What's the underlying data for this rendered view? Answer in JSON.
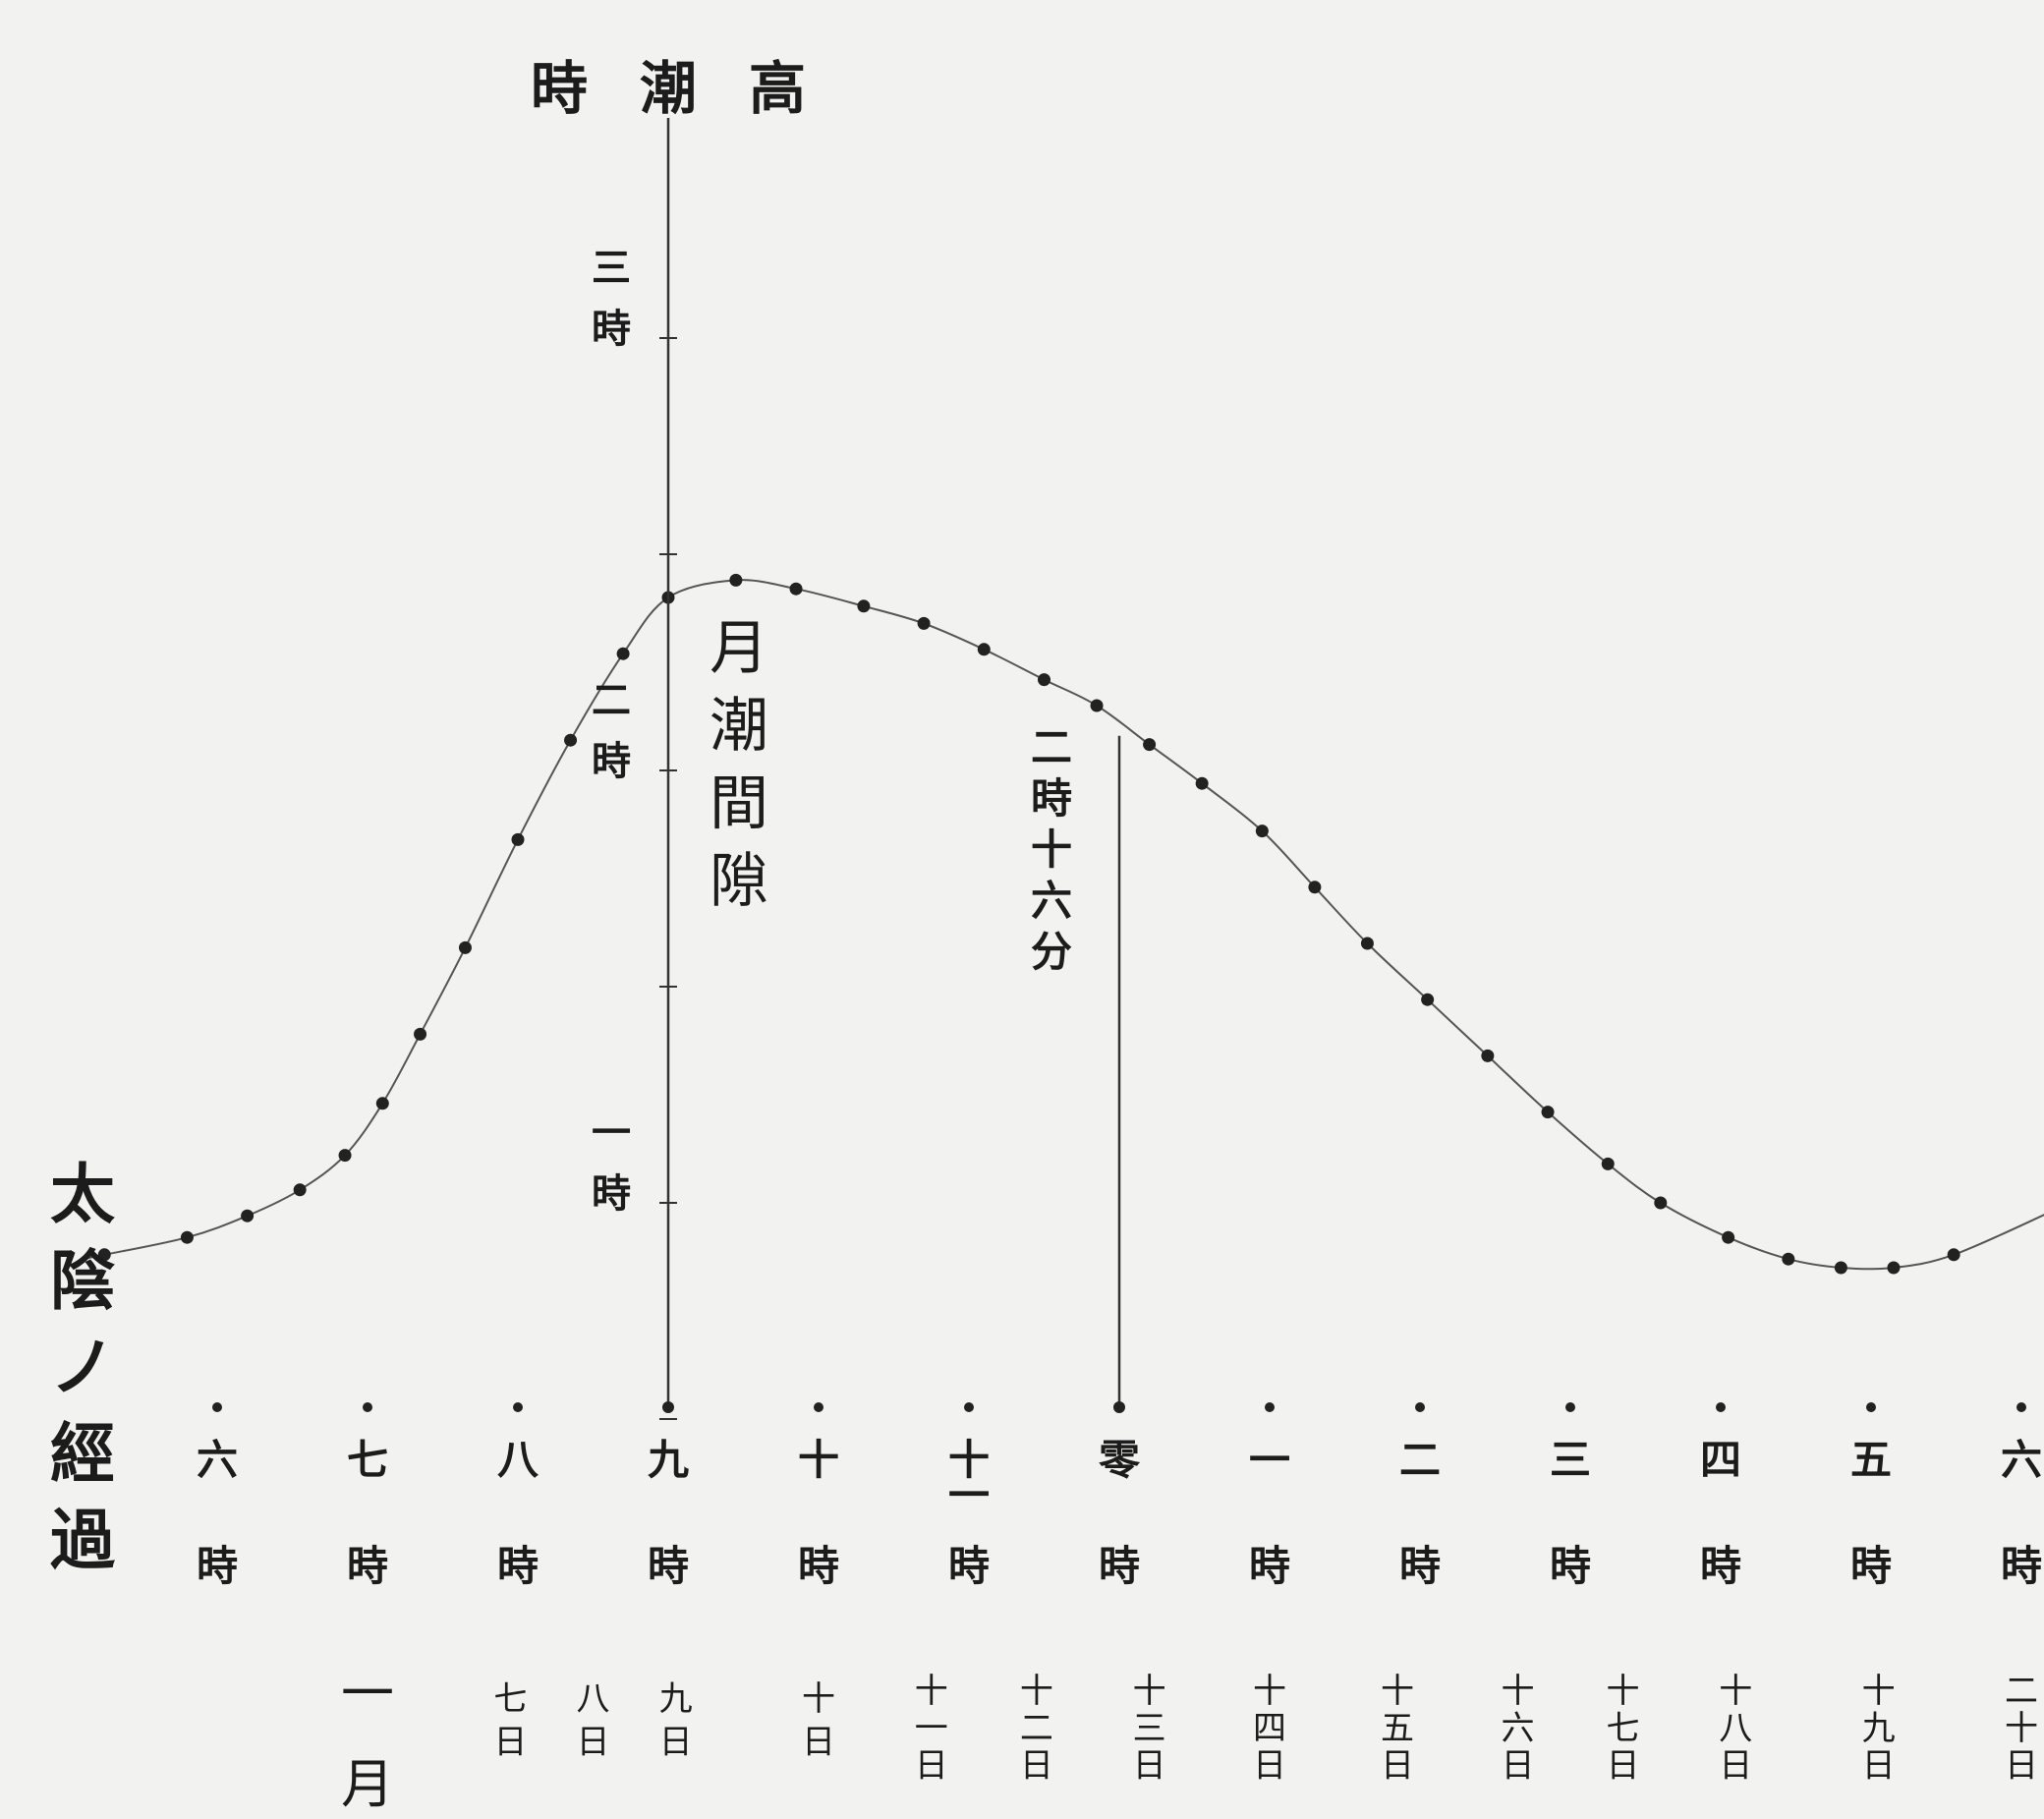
{
  "chart_data": {
    "type": "line",
    "title": "高潮時",
    "xlabel": "太陰ノ經過",
    "ylabel": "",
    "x_hour_labels": [
      {
        "hour": 6,
        "num": "六",
        "unit": "時"
      },
      {
        "hour": 7,
        "num": "七",
        "unit": "時"
      },
      {
        "hour": 8,
        "num": "八",
        "unit": "時"
      },
      {
        "hour": 9,
        "num": "九",
        "unit": "時"
      },
      {
        "hour": 10,
        "num": "十",
        "unit": "時"
      },
      {
        "hour": 11,
        "num": "十一",
        "unit": "時"
      },
      {
        "hour": 12,
        "num": "零",
        "unit": "時"
      },
      {
        "hour": 13,
        "num": "一",
        "unit": "時"
      },
      {
        "hour": 14,
        "num": "二",
        "unit": "時"
      },
      {
        "hour": 15,
        "num": "三",
        "unit": "時"
      },
      {
        "hour": 16,
        "num": "四",
        "unit": "時"
      },
      {
        "hour": 17,
        "num": "五",
        "unit": "時"
      },
      {
        "hour": 18,
        "num": "六",
        "unit": "時"
      }
    ],
    "y_tick_labels": [
      {
        "value": 1,
        "label": "一時"
      },
      {
        "value": 2,
        "label": "二時"
      },
      {
        "value": 3,
        "label": "三時"
      }
    ],
    "ylim": [
      0.55,
      3.25
    ],
    "xlim": [
      5.2,
      18.4
    ],
    "date_row": {
      "month_label": "一月",
      "days": [
        {
          "label": "七日",
          "hour": 7.95
        },
        {
          "label": "八日",
          "hour": 8.5
        },
        {
          "label": "九日",
          "hour": 9.05
        },
        {
          "label": "十日",
          "hour": 10.0
        },
        {
          "label": "十一日",
          "hour": 10.75
        },
        {
          "label": "十二日",
          "hour": 11.45
        },
        {
          "label": "十三日",
          "hour": 12.2
        },
        {
          "label": "十四日",
          "hour": 13.0
        },
        {
          "label": "十五日",
          "hour": 13.85
        },
        {
          "label": "十六日",
          "hour": 14.65
        },
        {
          "label": "十七日",
          "hour": 15.35
        },
        {
          "label": "十八日",
          "hour": 16.1
        },
        {
          "label": "十九日",
          "hour": 17.05
        },
        {
          "label": "二十日",
          "hour": 18.0
        }
      ]
    },
    "series": [
      {
        "x": [
          5.25,
          5.8,
          6.2,
          6.55,
          6.85,
          7.1,
          7.35,
          7.65,
          8.0,
          8.35,
          8.7,
          9.0,
          9.45,
          9.85,
          10.3,
          10.7,
          11.1,
          11.5,
          11.85,
          12.2,
          12.55,
          12.95,
          13.3,
          13.65,
          14.05,
          14.45,
          14.85,
          15.25,
          15.6,
          16.05,
          16.45,
          16.8,
          17.15,
          17.55
        ],
        "y": [
          0.88,
          0.92,
          0.97,
          1.03,
          1.11,
          1.23,
          1.39,
          1.59,
          1.84,
          2.07,
          2.27,
          2.4,
          2.44,
          2.42,
          2.38,
          2.34,
          2.28,
          2.21,
          2.15,
          2.06,
          1.97,
          1.86,
          1.73,
          1.6,
          1.47,
          1.34,
          1.21,
          1.09,
          1.0,
          0.92,
          0.87,
          0.85,
          0.85,
          0.88
        ]
      }
    ],
    "annotations": [
      {
        "text": "月潮間隙",
        "x": 9.45,
        "y": 2.0
      },
      {
        "text": "二時十六分",
        "x": 11.75,
        "y": 2.0
      }
    ],
    "vertical_lines": [
      {
        "x": 9.0,
        "y_top": 2.4,
        "extends_to_top": true
      },
      {
        "x": 12.0,
        "y_top": 2.08,
        "extends_to_top": false
      }
    ],
    "grid": false,
    "legend": "none"
  }
}
